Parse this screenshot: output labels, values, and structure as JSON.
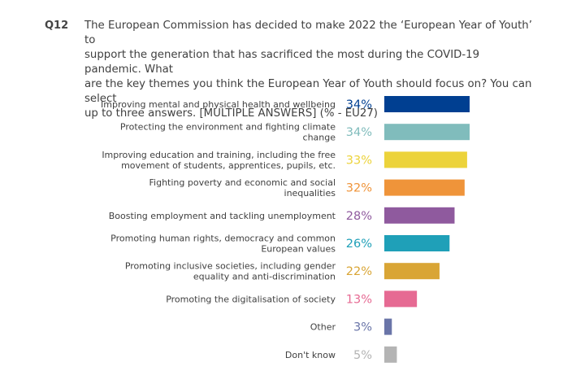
{
  "question": {
    "number": "Q12",
    "text": "The European Commission has decided to make 2022 the ‘European Year of Youth’ to\nsupport the generation that has sacrificed the most during the COVID-19 pandemic. What\nare the key themes you think the European Year of Youth should focus on? You can select\nup to three answers. [MULTIPLE ANSWERS] (% - EU27)"
  },
  "chart_data": {
    "type": "bar",
    "orientation": "horizontal",
    "unit": "%",
    "categories": [
      [
        "Improving mental and physical health and wellbeing"
      ],
      [
        "Protecting the environment and fighting climate",
        "change"
      ],
      [
        "Improving education and training, including the free",
        "movement of students, apprentices, pupils, etc."
      ],
      [
        "Fighting poverty and economic and social",
        "inequalities"
      ],
      [
        "Boosting employment and tackling unemployment"
      ],
      [
        "Promoting human rights, democracy and common",
        "European values"
      ],
      [
        "Promoting inclusive societies, including gender",
        "equality and anti-discrimination"
      ],
      [
        "Promoting the digitalisation of society"
      ],
      [
        "Other"
      ],
      [
        "Don't know"
      ]
    ],
    "values": [
      34,
      34,
      33,
      32,
      28,
      26,
      22,
      13,
      3,
      5
    ],
    "value_labels": [
      "34%",
      "34%",
      "33%",
      "32%",
      "28%",
      "26%",
      "22%",
      "13%",
      "3%",
      "5%"
    ],
    "colors": [
      "#003f91",
      "#80bcbc",
      "#ecd33b",
      "#ef943a",
      "#8f5a9e",
      "#1fa0b8",
      "#d9a535",
      "#e66a93",
      "#6a75a8",
      "#b4b4b4"
    ],
    "xlim": [
      0,
      34
    ],
    "grid": false,
    "legend": "none"
  }
}
